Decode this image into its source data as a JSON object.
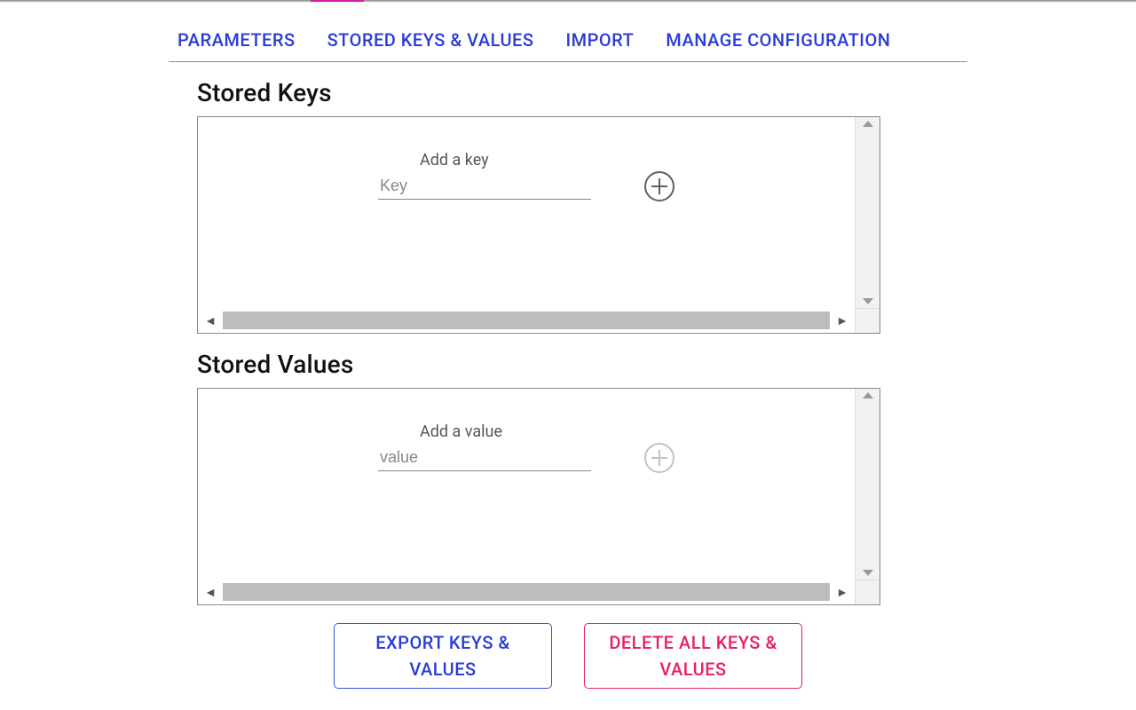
{
  "colors": {
    "tab_text": "#2a3cd6",
    "export_border": "#3b4fe0",
    "export_text": "#2a3cd6",
    "delete_border": "#e91e63",
    "delete_text": "#e91e63",
    "panel_border": "#888888",
    "scroll_track": "#bdbdbd",
    "scroll_gutter": "#f2f2f2",
    "placeholder": "#888888",
    "label_text": "#565656"
  },
  "tabs": {
    "parameters": "PARAMETERS",
    "stored": "STORED KEYS & VALUES",
    "import": "IMPORT",
    "manage": "MANAGE CONFIGURATION"
  },
  "sections": {
    "keys": {
      "title": "Stored Keys",
      "field_label": "Add a key",
      "placeholder": "Key",
      "add_enabled": true
    },
    "values": {
      "title": "Stored Values",
      "field_label": "Add a value",
      "placeholder": "value",
      "add_enabled": false
    }
  },
  "buttons": {
    "export": "EXPORT KEYS & VALUES",
    "delete": "DELETE ALL KEYS & VALUES"
  }
}
